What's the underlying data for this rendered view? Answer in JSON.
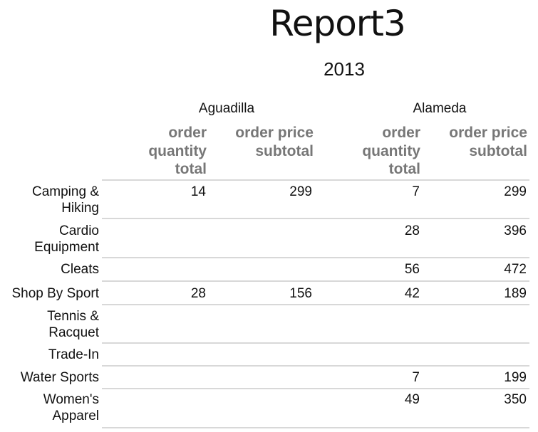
{
  "report": {
    "title": "Report3",
    "year": "2013"
  },
  "column_groups": [
    "Aguadilla",
    "Alameda"
  ],
  "measure_headers": {
    "qty_lines": [
      "order",
      "quantity",
      "total"
    ],
    "price_lines": [
      "order price",
      "subtotal"
    ]
  },
  "rows": [
    {
      "label": [
        "Camping &",
        "Hiking"
      ],
      "aguadilla_qty": "14",
      "aguadilla_price": "299",
      "alameda_qty": "7",
      "alameda_price": "299"
    },
    {
      "label": [
        "Cardio",
        "Equipment"
      ],
      "aguadilla_qty": "",
      "aguadilla_price": "",
      "alameda_qty": "28",
      "alameda_price": "396"
    },
    {
      "label": [
        "Cleats"
      ],
      "aguadilla_qty": "",
      "aguadilla_price": "",
      "alameda_qty": "56",
      "alameda_price": "472"
    },
    {
      "label": [
        "Shop By Sport"
      ],
      "aguadilla_qty": "28",
      "aguadilla_price": "156",
      "alameda_qty": "42",
      "alameda_price": "189"
    },
    {
      "label": [
        "Tennis &",
        "Racquet"
      ],
      "aguadilla_qty": "",
      "aguadilla_price": "",
      "alameda_qty": "",
      "alameda_price": ""
    },
    {
      "label": [
        "Trade-In"
      ],
      "aguadilla_qty": "",
      "aguadilla_price": "",
      "alameda_qty": "",
      "alameda_price": ""
    },
    {
      "label": [
        "Water Sports"
      ],
      "aguadilla_qty": "",
      "aguadilla_price": "",
      "alameda_qty": "7",
      "alameda_price": "199"
    },
    {
      "label": [
        "Women's",
        "Apparel"
      ],
      "aguadilla_qty": "",
      "aguadilla_price": "",
      "alameda_qty": "49",
      "alameda_price": "350"
    }
  ]
}
